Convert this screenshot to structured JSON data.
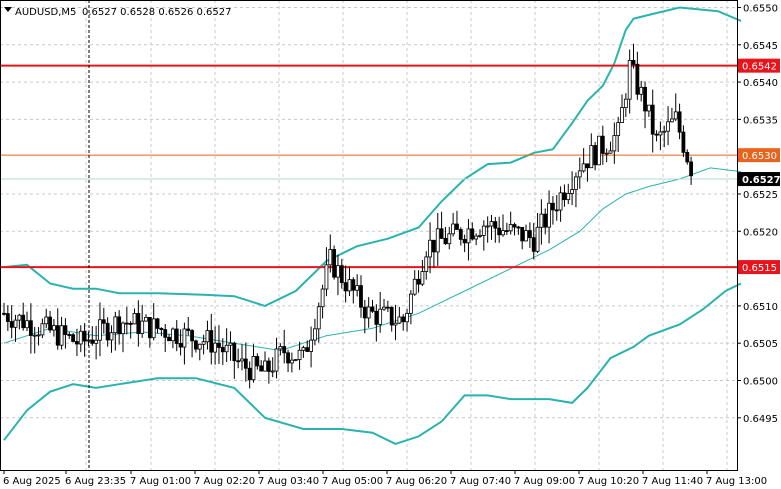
{
  "chart_data": {
    "type": "candlestick",
    "symbol_header": "AUDUSD,M5",
    "ohlc_header": "0.6527 0.6528 0.6526 0.6527",
    "y_range": [
      0.6488,
      0.6551
    ],
    "y_ticks": [
      "0.6550",
      "0.6545",
      "0.6540",
      "0.6535",
      "0.6525",
      "0.6520",
      "0.6510",
      "0.6505",
      "0.6500",
      "0.6495"
    ],
    "x_labels": [
      "6 Aug 2025",
      "6 Aug 23:35",
      "7 Aug 01:00",
      "7 Aug 02:20",
      "7 Aug 03:40",
      "7 Aug 05:00",
      "7 Aug 06:20",
      "7 Aug 07:40",
      "7 Aug 09:00",
      "7 Aug 10:20",
      "7 Aug 11:40",
      "7 Aug 13:00"
    ],
    "bar_count": 180,
    "levels": [
      {
        "label": "0.6542",
        "value": 0.65422,
        "color": "#e8141c",
        "width": 2
      },
      {
        "label": "0.6530",
        "value": 0.65302,
        "color": "#e8641c",
        "width": 1
      },
      {
        "label": "0.6515",
        "value": 0.65152,
        "color": "#e8141c",
        "width": 2
      }
    ],
    "current_price": {
      "label": "0.6527",
      "value": 0.6527
    },
    "band_color": "#2ab3ae",
    "close_path": [
      [
        0,
        0.6509
      ],
      [
        10,
        0.6507
      ],
      [
        20,
        0.6505
      ],
      [
        30,
        0.6508
      ],
      [
        40,
        0.6507
      ],
      [
        55,
        0.6505
      ],
      [
        62,
        0.6502
      ],
      [
        68,
        0.6501
      ],
      [
        73,
        0.6504
      ],
      [
        78,
        0.6503
      ],
      [
        85,
        0.6516
      ],
      [
        95,
        0.6509
      ],
      [
        104,
        0.6508
      ],
      [
        110,
        0.6518
      ],
      [
        125,
        0.6521
      ],
      [
        138,
        0.6519
      ],
      [
        150,
        0.6529
      ],
      [
        155,
        0.6531
      ],
      [
        160,
        0.6533
      ],
      [
        163,
        0.6542
      ],
      [
        167,
        0.6537
      ],
      [
        170,
        0.6532
      ],
      [
        175,
        0.6535
      ],
      [
        180,
        0.6527
      ]
    ],
    "bb_upper": [
      [
        0,
        0.65152
      ],
      [
        6,
        0.65155
      ],
      [
        12,
        0.6513
      ],
      [
        18,
        0.65123
      ],
      [
        24,
        0.65123
      ],
      [
        30,
        0.65117
      ],
      [
        40,
        0.65117
      ],
      [
        52,
        0.65115
      ],
      [
        60,
        0.65113
      ],
      [
        68,
        0.651
      ],
      [
        76,
        0.6512
      ],
      [
        84,
        0.6516
      ],
      [
        92,
        0.6518
      ],
      [
        100,
        0.6519
      ],
      [
        108,
        0.65205
      ],
      [
        114,
        0.6524
      ],
      [
        120,
        0.6527
      ],
      [
        126,
        0.6529
      ],
      [
        132,
        0.65292
      ],
      [
        138,
        0.65305
      ],
      [
        143,
        0.6531
      ],
      [
        148,
        0.65345
      ],
      [
        152,
        0.65375
      ],
      [
        156,
        0.65395
      ],
      [
        159,
        0.65425
      ],
      [
        162,
        0.6547
      ],
      [
        164,
        0.65485
      ],
      [
        168,
        0.6549
      ],
      [
        176,
        0.655
      ],
      [
        186,
        0.65495
      ],
      [
        192,
        0.65482
      ]
    ],
    "bb_mid": [
      [
        0,
        0.6505
      ],
      [
        12,
        0.6507
      ],
      [
        24,
        0.6506
      ],
      [
        36,
        0.65065
      ],
      [
        48,
        0.6506
      ],
      [
        60,
        0.6505
      ],
      [
        72,
        0.6504
      ],
      [
        84,
        0.6506
      ],
      [
        96,
        0.6507
      ],
      [
        108,
        0.6509
      ],
      [
        120,
        0.6512
      ],
      [
        132,
        0.6515
      ],
      [
        142,
        0.65175
      ],
      [
        150,
        0.652
      ],
      [
        156,
        0.6523
      ],
      [
        162,
        0.6525
      ],
      [
        168,
        0.6526
      ],
      [
        176,
        0.6527
      ],
      [
        184,
        0.65285
      ],
      [
        192,
        0.6528
      ]
    ],
    "bb_lower": [
      [
        0,
        0.6492
      ],
      [
        6,
        0.6496
      ],
      [
        12,
        0.64985
      ],
      [
        18,
        0.64995
      ],
      [
        24,
        0.6499
      ],
      [
        30,
        0.64995
      ],
      [
        40,
        0.65003
      ],
      [
        50,
        0.65003
      ],
      [
        60,
        0.6499
      ],
      [
        68,
        0.6495
      ],
      [
        78,
        0.64935
      ],
      [
        88,
        0.64935
      ],
      [
        96,
        0.6493
      ],
      [
        102,
        0.64915
      ],
      [
        108,
        0.64925
      ],
      [
        114,
        0.64945
      ],
      [
        120,
        0.6498
      ],
      [
        126,
        0.6498
      ],
      [
        132,
        0.64975
      ],
      [
        138,
        0.64975
      ],
      [
        142,
        0.64975
      ],
      [
        148,
        0.6497
      ],
      [
        152,
        0.6499
      ],
      [
        158,
        0.6503
      ],
      [
        164,
        0.65045
      ],
      [
        168,
        0.6506
      ],
      [
        176,
        0.65075
      ],
      [
        182,
        0.65095
      ],
      [
        188,
        0.6512
      ],
      [
        192,
        0.6513
      ]
    ]
  }
}
